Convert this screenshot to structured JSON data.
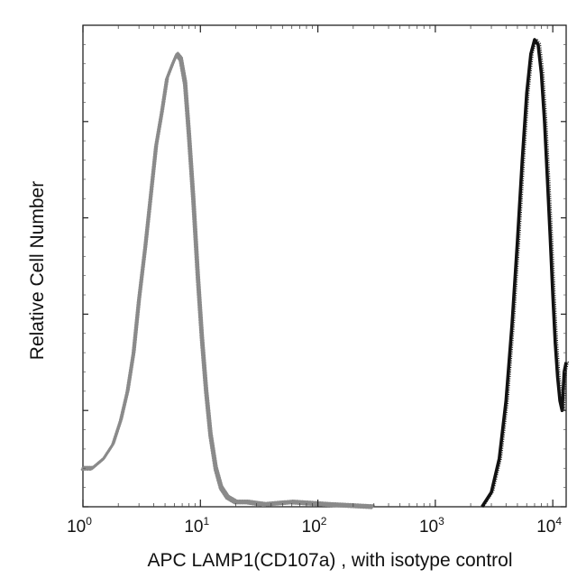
{
  "chart_data": {
    "type": "line",
    "title": "",
    "xlabel": "APC LAMP1(CD107a) , with isotype control",
    "ylabel": "Relative Cell Number",
    "x_scale": "log",
    "xlim": [
      1,
      13000
    ],
    "ylim": [
      0,
      100
    ],
    "grid": false,
    "legend": "none",
    "x_ticks": [
      {
        "base": "10",
        "exp": "0",
        "value": 1
      },
      {
        "base": "10",
        "exp": "1",
        "value": 10
      },
      {
        "base": "10",
        "exp": "2",
        "value": 100
      },
      {
        "base": "10",
        "exp": "3",
        "value": 1000
      },
      {
        "base": "10",
        "exp": "4",
        "value": 10000
      }
    ],
    "y_ticks": [
      0,
      20,
      40,
      60,
      80
    ],
    "series": [
      {
        "style": "isotype-dotted",
        "color": "#8a8a8a",
        "x": [
          1,
          1.2,
          1.5,
          1.8,
          2.1,
          2.4,
          2.7,
          3.0,
          3.4,
          3.8,
          4.2,
          4.7,
          5.2,
          5.8,
          6.3,
          6.8,
          7.4,
          8.0,
          8.7,
          9.5,
          10.3,
          11.2,
          12.2,
          13.5,
          15,
          17,
          20,
          25,
          35,
          60,
          120,
          300
        ],
        "y": [
          8,
          8,
          10,
          13,
          18,
          24,
          32,
          43,
          54,
          65,
          75,
          82,
          89,
          92,
          94,
          93,
          88,
          77,
          64,
          48,
          35,
          24,
          15,
          8,
          4,
          2,
          1,
          1,
          0.5,
          1,
          0.5,
          0
        ]
      },
      {
        "style": "stained-solid",
        "color": "#111111",
        "x": [
          2500,
          3000,
          3500,
          4000,
          4500,
          5000,
          5500,
          6000,
          6500,
          7000,
          7500,
          8000,
          8500,
          9000,
          9500,
          10000,
          10500,
          11000,
          11500,
          12000,
          12500,
          13000
        ],
        "y": [
          0,
          3,
          10,
          22,
          38,
          55,
          72,
          86,
          94,
          97,
          96,
          90,
          80,
          68,
          56,
          44,
          34,
          27,
          22,
          20,
          28,
          30
        ]
      }
    ]
  }
}
